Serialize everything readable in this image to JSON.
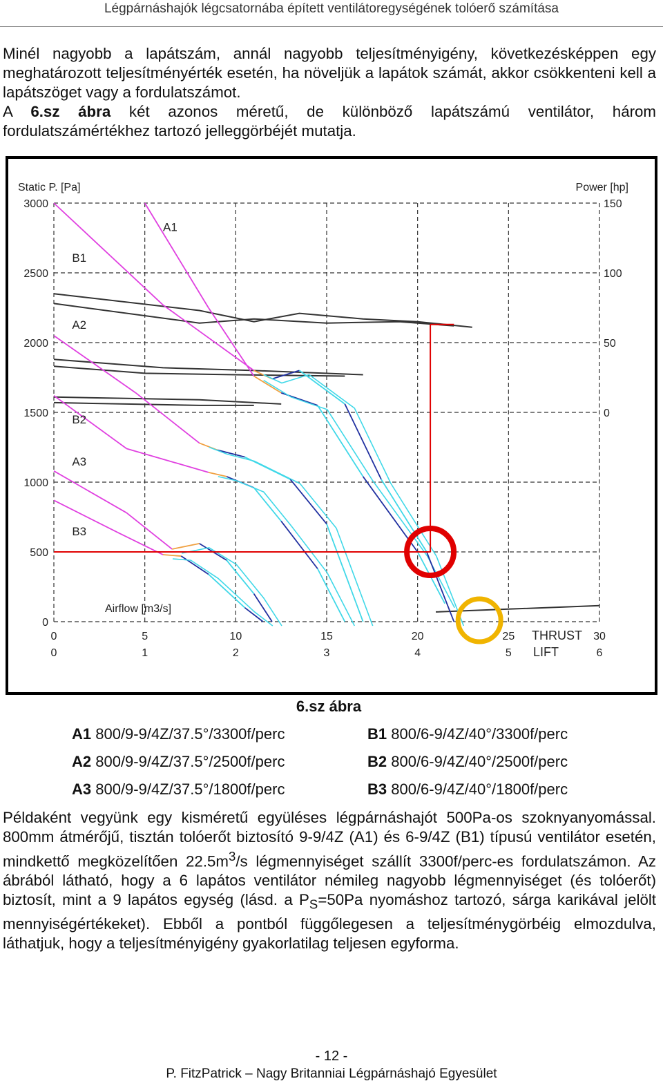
{
  "header": {
    "title": "Légpárnáshajók légcsatornába épített ventilátoregységének tolóerő számítása"
  },
  "intro": {
    "line1": "Minél nagyobb a lapátszám, annál nagyobb teljesítményigény, következésképpen egy meghatározott teljesítményérték esetén, ha növeljük a lapátok számát, akkor csökkenteni kell a lapátszöget vagy a fordulatszámot.",
    "line2_pre": "A ",
    "line2_ref": "6.sz ábra",
    "line2_post": " két azonos méretű, de különböző lapátszámú ventilátor, három fordulatszámértékhez tartozó jelleggörbéjét mutatja."
  },
  "chart_data": {
    "type": "line",
    "y_left_label": "Static P. [Pa]",
    "y_right_label": "Power [hp]",
    "x_label": "Airflow [m3/s]",
    "thrust_label": "THRUST",
    "lift_label": "LIFT",
    "y_left_ticks": [
      "3000",
      "2500",
      "2000",
      "1500",
      "1000",
      "500",
      "0"
    ],
    "y_right_ticks": [
      "150",
      "100",
      "50",
      "0"
    ],
    "x_ticks": [
      "0",
      "5",
      "10",
      "15",
      "20",
      "25",
      "30"
    ],
    "x2_ticks": [
      "0",
      "1",
      "2",
      "3",
      "4",
      "5",
      "6"
    ],
    "xlim": [
      0,
      30
    ],
    "ylim": [
      0,
      3000
    ],
    "grid": true,
    "curve_labels": [
      "A1",
      "B1",
      "A2",
      "B2",
      "A3",
      "B3"
    ],
    "series": [
      {
        "name": "A1",
        "color": "#e040e0",
        "points": [
          [
            5,
            3000
          ],
          [
            8.5,
            2250
          ],
          [
            11,
            1760
          ],
          [
            12.5,
            1640
          ],
          [
            14.5,
            1550
          ],
          [
            17,
            1040
          ],
          [
            20,
            500
          ],
          [
            21.5,
            130
          ]
        ]
      },
      {
        "name": "B1",
        "color": "#e040e0",
        "points": [
          [
            0,
            3000
          ],
          [
            6,
            2270
          ],
          [
            11,
            1800
          ],
          [
            12,
            1740
          ],
          [
            13.5,
            1800
          ],
          [
            16,
            1560
          ],
          [
            18,
            1020
          ],
          [
            20.5,
            500
          ],
          [
            22,
            0
          ]
        ]
      },
      {
        "name": "A2",
        "color": "#e040e0",
        "points": [
          [
            0,
            2050
          ],
          [
            4.5,
            1640
          ],
          [
            8,
            1280
          ],
          [
            9,
            1230
          ],
          [
            10.5,
            1180
          ],
          [
            13,
            1020
          ],
          [
            15,
            700
          ],
          [
            17,
            0
          ]
        ]
      },
      {
        "name": "B2",
        "color": "#e040e0",
        "points": [
          [
            0,
            1620
          ],
          [
            4,
            1240
          ],
          [
            8.5,
            1070
          ],
          [
            9.5,
            1040
          ],
          [
            11,
            960
          ],
          [
            12.5,
            720
          ],
          [
            14.5,
            380
          ],
          [
            16,
            0
          ]
        ]
      },
      {
        "name": "A3",
        "color": "#e040e0",
        "points": [
          [
            0,
            1080
          ],
          [
            4,
            780
          ],
          [
            6.5,
            520
          ],
          [
            8,
            560
          ],
          [
            9.5,
            440
          ],
          [
            11,
            200
          ],
          [
            12,
            0
          ]
        ]
      },
      {
        "name": "B3",
        "color": "#e040e0",
        "points": [
          [
            0,
            870
          ],
          [
            3.5,
            640
          ],
          [
            6,
            480
          ],
          [
            7,
            470
          ],
          [
            8.5,
            340
          ],
          [
            10.5,
            100
          ],
          [
            11.5,
            0
          ]
        ]
      }
    ],
    "power_series": [
      {
        "name": "A1 power",
        "color": "#333333",
        "points": [
          [
            0,
            2350
          ],
          [
            8,
            2230
          ],
          [
            11,
            2150
          ],
          [
            13.5,
            2210
          ],
          [
            17,
            2170
          ],
          [
            20,
            2150
          ],
          [
            23,
            2110
          ]
        ]
      },
      {
        "name": "B1 power",
        "color": "#333333",
        "points": [
          [
            0,
            2280
          ],
          [
            8,
            2140
          ],
          [
            11,
            2170
          ],
          [
            15,
            2140
          ],
          [
            19,
            2150
          ],
          [
            22,
            2120
          ]
        ]
      },
      {
        "name": "A2 power",
        "color": "#333333",
        "points": [
          [
            0,
            1880
          ],
          [
            6,
            1820
          ],
          [
            11,
            1800
          ],
          [
            17,
            1770
          ]
        ]
      },
      {
        "name": "B2 power",
        "color": "#333333",
        "points": [
          [
            0,
            1830
          ],
          [
            5,
            1780
          ],
          [
            10,
            1770
          ],
          [
            16,
            1760
          ]
        ]
      },
      {
        "name": "A3 power",
        "color": "#333333",
        "points": [
          [
            0,
            1610
          ],
          [
            4,
            1600
          ],
          [
            8,
            1590
          ],
          [
            12.5,
            1560
          ]
        ]
      },
      {
        "name": "B3 power",
        "color": "#333333",
        "points": [
          [
            0,
            1570
          ],
          [
            4,
            1560
          ],
          [
            8,
            1550
          ],
          [
            11,
            1550
          ]
        ]
      },
      {
        "name": "thrust",
        "color": "#333333",
        "points": [
          [
            21,
            70
          ],
          [
            25,
            90
          ],
          [
            30,
            115
          ]
        ]
      }
    ],
    "marker_line_color": "#e00000",
    "red_circle_color": "#e00000",
    "yellow_circle_color": "#f0b400",
    "red_lines": {
      "y": 500,
      "x": 20.7,
      "top": 2130
    },
    "red_circle": {
      "x": 20.7,
      "y": 500
    },
    "yellow_circle": {
      "x": 23.4,
      "y": 0
    }
  },
  "figure": {
    "caption": "6.sz ábra",
    "legend": [
      {
        "id": "A1",
        "text": " 800/9-9/4Z/37.5°/3300f/perc"
      },
      {
        "id": "A2",
        "text": " 800/9-9/4Z/37.5°/2500f/perc"
      },
      {
        "id": "A3",
        "text": " 800/9-9/4Z/37.5°/1800f/perc"
      },
      {
        "id": "B1",
        "text": " 800/6-9/4Z/40°/3300f/perc"
      },
      {
        "id": "B2",
        "text": " 800/6-9/4Z/40°/2500f/perc"
      },
      {
        "id": "B3",
        "text": " 800/6-9/4Z/40°/1800f/perc"
      }
    ]
  },
  "body": {
    "p2_a": "Példaként vegyünk egy kisméretű együléses légpárnáshajót 500Pa-os szoknyanyomással. 800mm átmérőjű, tisztán tolóerőt biztosító 9-9/4Z (A1) és 6-9/4Z (B1) típusú ventilátor esetén, mindkettő megközelítően 22.5m",
    "p2_sup": "3",
    "p2_b": "/s légmennyiséget szállít 3300f/perc-es fordulatszámon. Az ábrából látható, hogy a 6 lapátos ventilátor némileg nagyobb légmennyiséget (és tolóerőt) biztosít, mint a 9 lapátos egység (lásd. a P",
    "p2_sub": "S",
    "p2_c": "=50Pa nyomáshoz tartozó, sárga karikával jelölt mennyiségértékeket). Ebből a pontból függőlegesen a teljesítménygörbéig elmozdulva, láthatjuk, hogy a teljesítményigény gyakorlatilag teljesen egyforma."
  },
  "footer": {
    "page": "- 12 -",
    "author": "P. FitzPatrick – Nagy Britanniai Légpárnáshajó Egyesület"
  }
}
